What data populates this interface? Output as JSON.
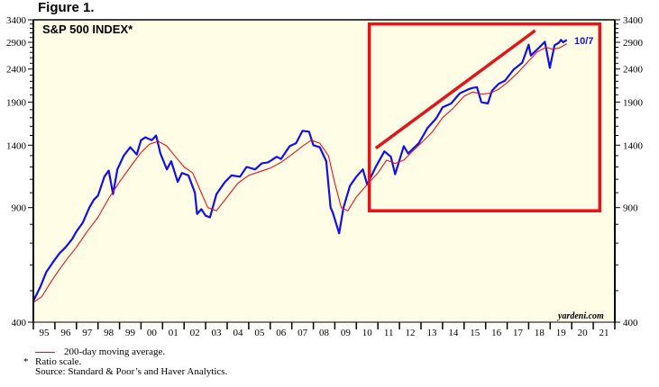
{
  "figure_label": "Figure 1.",
  "chart_data": {
    "type": "line",
    "title": "S&P 500 INDEX*",
    "xlabel": "",
    "ylabel": "",
    "scale": "log",
    "ylim": [
      400,
      3400
    ],
    "xlim": [
      1995,
      2022
    ],
    "y_ticks": [
      400,
      900,
      1400,
      1900,
      2400,
      2900,
      3400
    ],
    "x_tick_labels": [
      "95",
      "96",
      "97",
      "98",
      "99",
      "00",
      "01",
      "02",
      "03",
      "04",
      "05",
      "06",
      "07",
      "08",
      "09",
      "10",
      "11",
      "12",
      "13",
      "14",
      "15",
      "16",
      "17",
      "18",
      "19",
      "20",
      "21"
    ],
    "grid": false,
    "legend_position": "below-left",
    "colors": {
      "background": "#fffde6",
      "index": "#1010e8",
      "moving_average": "#e8121a",
      "highlight_box": "#e8121a",
      "trend_line": "#e0161e"
    },
    "end_label": "10/7",
    "watermark": "yardeni.com",
    "series": [
      {
        "name": "S&P 500 Index",
        "x": [
          1995.0,
          1995.3,
          1995.6,
          1995.9,
          1996.2,
          1996.5,
          1996.8,
          1997.0,
          1997.3,
          1997.6,
          1997.8,
          1998.0,
          1998.3,
          1998.5,
          1998.7,
          1998.9,
          1999.2,
          1999.5,
          1999.8,
          2000.0,
          2000.2,
          2000.5,
          2000.7,
          2000.9,
          2001.2,
          2001.4,
          2001.7,
          2001.9,
          2002.2,
          2002.5,
          2002.6,
          2002.8,
          2003.0,
          2003.2,
          2003.5,
          2003.9,
          2004.2,
          2004.6,
          2004.9,
          2005.3,
          2005.6,
          2005.9,
          2006.3,
          2006.5,
          2006.9,
          2007.2,
          2007.5,
          2007.8,
          2008.0,
          2008.3,
          2008.6,
          2008.8,
          2008.9,
          2009.2,
          2009.4,
          2009.7,
          2010.0,
          2010.3,
          2010.5,
          2010.9,
          2011.3,
          2011.6,
          2011.8,
          2012.2,
          2012.4,
          2012.9,
          2013.3,
          2013.7,
          2014.0,
          2014.4,
          2014.8,
          2015.2,
          2015.4,
          2015.6,
          2015.8,
          2016.1,
          2016.3,
          2016.6,
          2016.9,
          2017.3,
          2017.7,
          2018.0,
          2018.1,
          2018.5,
          2018.75,
          2018.98,
          2019.2,
          2019.4,
          2019.5,
          2019.6,
          2019.77
        ],
        "values": [
          465,
          510,
          570,
          610,
          650,
          680,
          720,
          760,
          810,
          900,
          950,
          980,
          1120,
          1170,
          990,
          1180,
          1300,
          1380,
          1310,
          1450,
          1480,
          1450,
          1500,
          1320,
          1180,
          1250,
          1080,
          1150,
          1130,
          1000,
          860,
          890,
          850,
          840,
          990,
          1080,
          1130,
          1120,
          1200,
          1180,
          1230,
          1240,
          1290,
          1270,
          1390,
          1420,
          1550,
          1540,
          1400,
          1380,
          1250,
          900,
          870,
          750,
          900,
          1050,
          1120,
          1180,
          1060,
          1200,
          1340,
          1290,
          1140,
          1390,
          1320,
          1420,
          1580,
          1690,
          1830,
          1880,
          2020,
          2080,
          2100,
          2110,
          1900,
          1880,
          2060,
          2160,
          2210,
          2390,
          2510,
          2850,
          2640,
          2800,
          2910,
          2420,
          2840,
          2890,
          2950,
          2900,
          2950
        ]
      },
      {
        "name": "200-day moving average",
        "x": [
          1995.0,
          1995.4,
          1995.8,
          1996.2,
          1996.6,
          1997.0,
          1997.5,
          1998.0,
          1998.5,
          1999.0,
          1999.5,
          2000.0,
          2000.4,
          2000.8,
          2001.2,
          2001.6,
          2002.0,
          2002.4,
          2002.8,
          2003.1,
          2003.5,
          2004.0,
          2004.5,
          2005.0,
          2005.5,
          2006.0,
          2006.5,
          2007.0,
          2007.5,
          2007.9,
          2008.3,
          2008.7,
          2009.0,
          2009.3,
          2009.6,
          2010.0,
          2010.5,
          2011.0,
          2011.4,
          2011.8,
          2012.2,
          2012.6,
          2013.0,
          2013.5,
          2014.0,
          2014.5,
          2015.0,
          2015.4,
          2015.8,
          2016.2,
          2016.6,
          2017.0,
          2017.5,
          2018.0,
          2018.4,
          2018.8,
          2019.1,
          2019.4,
          2019.77
        ],
        "values": [
          460,
          480,
          530,
          580,
          630,
          680,
          760,
          840,
          960,
          1080,
          1200,
          1330,
          1410,
          1440,
          1390,
          1290,
          1200,
          1150,
          1000,
          900,
          880,
          970,
          1070,
          1130,
          1160,
          1190,
          1240,
          1310,
          1390,
          1450,
          1420,
          1300,
          1070,
          900,
          880,
          970,
          1060,
          1150,
          1260,
          1230,
          1260,
          1340,
          1420,
          1530,
          1700,
          1820,
          1980,
          2040,
          2010,
          2020,
          2080,
          2180,
          2340,
          2540,
          2710,
          2800,
          2760,
          2780,
          2870
        ]
      }
    ],
    "annotations": [
      {
        "type": "box",
        "x0": 2010.6,
        "x1": 2021.3,
        "y0": 880,
        "y1": 3300,
        "color": "#e8121a"
      },
      {
        "type": "trend_line",
        "x0": 2010.9,
        "y0": 1370,
        "x1": 2018.3,
        "y1": 3150,
        "color": "#e0161e"
      }
    ]
  },
  "footnotes": {
    "legend_label": "200-day moving average.",
    "star": "*",
    "ratio_note": "Ratio scale.",
    "source": "Source: Standard & Poor’s and Haver Analytics."
  }
}
